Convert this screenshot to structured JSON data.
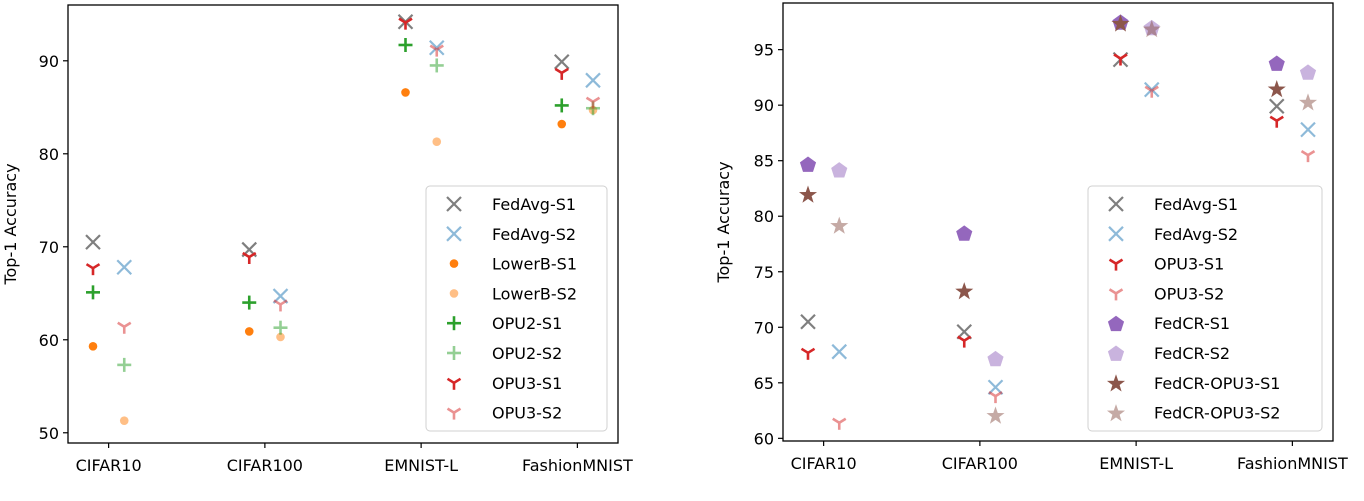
{
  "chart_data": [
    {
      "type": "scatter",
      "title": "",
      "xlabel": "",
      "ylabel": "Top-1 Accuracy",
      "categories": [
        "CIFAR10",
        "CIFAR100",
        "EMNIST-L",
        "FashionMNIST"
      ],
      "ylim": [
        48.9,
        96.0
      ],
      "xlim": [
        -0.26,
        3.26
      ],
      "yticks": [
        50,
        60,
        70,
        80,
        90
      ],
      "grid": false,
      "legend_position": "lower-right",
      "series": [
        {
          "name": "FedAvg-S1",
          "marker": "x",
          "color": "#7f7f7f",
          "alpha": 1,
          "offset": -0.1,
          "values": [
            70.5,
            69.7,
            94.2,
            89.9
          ]
        },
        {
          "name": "FedAvg-S2",
          "marker": "x",
          "color": "#1f77b4",
          "alpha": 0.5,
          "offset": 0.1,
          "values": [
            67.8,
            64.7,
            91.4,
            87.9
          ]
        },
        {
          "name": "LowerB-S1",
          "marker": "o",
          "color": "#ff7f0e",
          "alpha": 1,
          "offset": -0.1,
          "values": [
            59.3,
            60.9,
            86.6,
            83.2
          ]
        },
        {
          "name": "LowerB-S2",
          "marker": "o",
          "color": "#ff7f0e",
          "alpha": 0.5,
          "offset": 0.1,
          "values": [
            51.3,
            60.3,
            81.3,
            84.7
          ]
        },
        {
          "name": "OPU2-S1",
          "marker": "+",
          "color": "#2ca02c",
          "alpha": 1,
          "offset": -0.1,
          "values": [
            65.1,
            64.0,
            91.7,
            85.2
          ]
        },
        {
          "name": "OPU2-S2",
          "marker": "+",
          "color": "#2ca02c",
          "alpha": 0.5,
          "offset": 0.1,
          "values": [
            57.3,
            61.3,
            89.5,
            84.9
          ]
        },
        {
          "name": "OPU3-S1",
          "marker": "tri_down",
          "color": "#d62728",
          "alpha": 1,
          "offset": -0.1,
          "values": [
            67.7,
            68.9,
            94.1,
            88.7
          ]
        },
        {
          "name": "OPU3-S2",
          "marker": "tri_down",
          "color": "#d62728",
          "alpha": 0.5,
          "offset": 0.1,
          "values": [
            61.4,
            63.8,
            91.2,
            85.6
          ]
        }
      ]
    },
    {
      "type": "scatter",
      "title": "",
      "xlabel": "",
      "ylabel": "Top-1 Accuracy",
      "categories": [
        "CIFAR10",
        "CIFAR100",
        "EMNIST-L",
        "FashionMNIST"
      ],
      "ylim": [
        59.76,
        99.2
      ],
      "xlim": [
        -0.26,
        3.26
      ],
      "yticks": [
        60,
        65,
        70,
        75,
        80,
        85,
        90,
        95
      ],
      "grid": false,
      "legend_position": "lower-right",
      "series": [
        {
          "name": "FedAvg-S1",
          "marker": "x",
          "color": "#7f7f7f",
          "alpha": 1,
          "offset": -0.1,
          "values": [
            70.5,
            69.6,
            94.1,
            89.9
          ]
        },
        {
          "name": "FedAvg-S2",
          "marker": "x",
          "color": "#1f77b4",
          "alpha": 0.5,
          "offset": 0.1,
          "values": [
            67.8,
            64.6,
            91.4,
            87.8
          ]
        },
        {
          "name": "OPU3-S1",
          "marker": "tri_down",
          "color": "#d62728",
          "alpha": 1,
          "offset": -0.1,
          "values": [
            67.7,
            68.8,
            94.2,
            88.6
          ]
        },
        {
          "name": "OPU3-S2",
          "marker": "tri_down",
          "color": "#d62728",
          "alpha": 0.5,
          "offset": 0.1,
          "values": [
            61.4,
            63.8,
            91.3,
            85.5
          ]
        },
        {
          "name": "FedCR-S1",
          "marker": "pentagon",
          "color": "#9467bd",
          "alpha": 1,
          "offset": -0.1,
          "values": [
            84.7,
            78.5,
            97.5,
            93.8
          ]
        },
        {
          "name": "FedCR-S2",
          "marker": "pentagon",
          "color": "#9467bd",
          "alpha": 0.5,
          "offset": 0.1,
          "values": [
            84.2,
            67.2,
            97.0,
            93.0
          ]
        },
        {
          "name": "FedCR-OPU3-S1",
          "marker": "star",
          "color": "#8c564b",
          "alpha": 1,
          "offset": -0.1,
          "values": [
            82.0,
            73.3,
            97.4,
            91.5
          ]
        },
        {
          "name": "FedCR-OPU3-S2",
          "marker": "star",
          "color": "#8c564b",
          "alpha": 0.5,
          "offset": 0.1,
          "values": [
            79.2,
            62.1,
            96.9,
            90.3
          ]
        }
      ]
    }
  ]
}
